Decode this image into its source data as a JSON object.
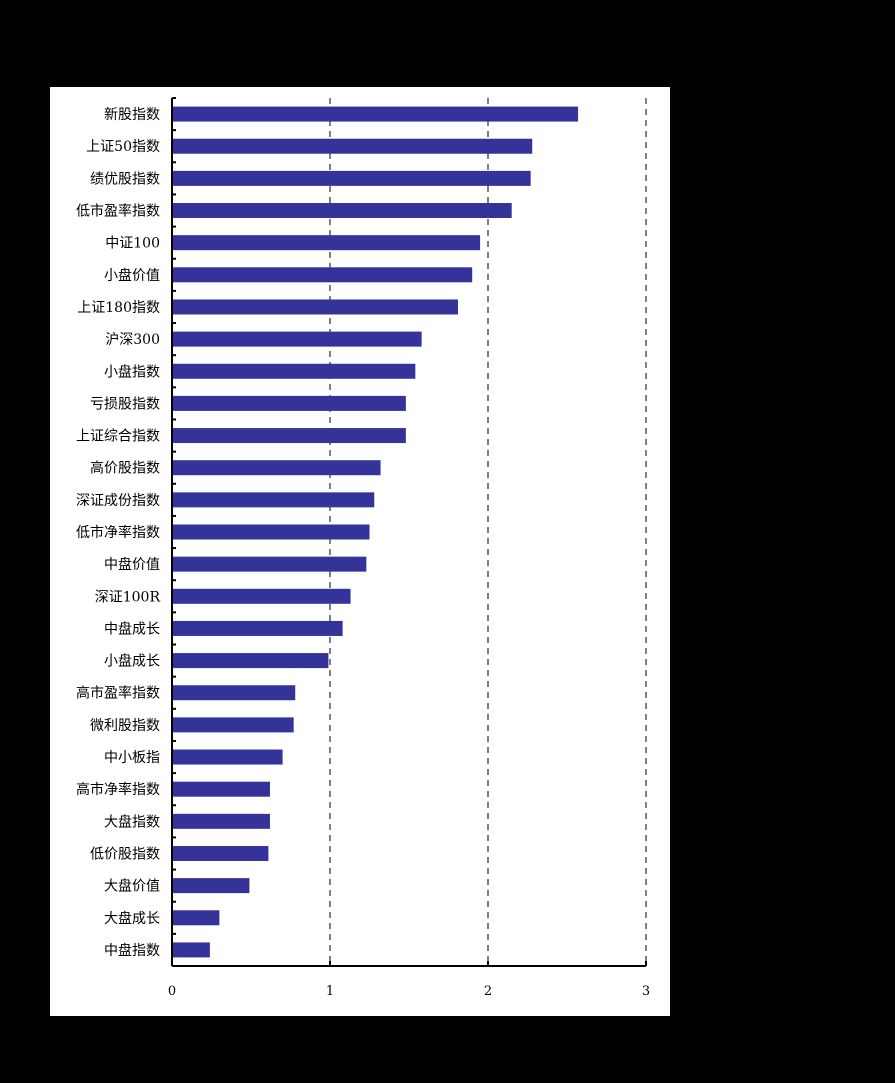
{
  "chart_data": {
    "type": "bar",
    "orientation": "horizontal",
    "title": "",
    "xlabel": "",
    "ylabel": "",
    "xlim": [
      0,
      3
    ],
    "xticks": [
      "0",
      "1",
      "2",
      "3"
    ],
    "grid": "vertical dashed at 1, 2, 3",
    "legend": "none",
    "bar_color": "#333399",
    "categories": [
      "新股指数",
      "上证50指数",
      "绩优股指数",
      "低市盈率指数",
      "中证100",
      "小盘价值",
      "上证180指数",
      "沪深300",
      "小盘指数",
      "亏损股指数",
      "上证综合指数",
      "高价股指数",
      "深证成份指数",
      "低市净率指数",
      "中盘价值",
      "深证100R",
      "中盘成长",
      "小盘成长",
      "高市盈率指数",
      "微利股指数",
      "中小板指",
      "高市净率指数",
      "大盘指数",
      "低价股指数",
      "大盘价值",
      "大盘成长",
      "中盘指数"
    ],
    "values": [
      2.57,
      2.28,
      2.27,
      2.15,
      1.95,
      1.9,
      1.81,
      1.58,
      1.54,
      1.48,
      1.48,
      1.32,
      1.28,
      1.25,
      1.23,
      1.13,
      1.08,
      0.99,
      0.78,
      0.77,
      0.7,
      0.62,
      0.62,
      0.61,
      0.49,
      0.3,
      0.24
    ]
  }
}
